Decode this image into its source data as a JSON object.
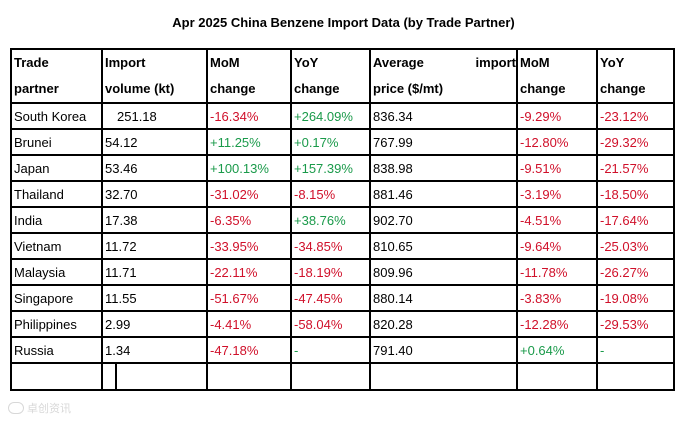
{
  "title": "Apr 2025 China Benzene Import Data (by Trade Partner)",
  "headers": {
    "partner": [
      "Trade",
      "partner"
    ],
    "volume": [
      "Import",
      "volume (kt)"
    ],
    "vol_mom": [
      "MoM",
      "change"
    ],
    "vol_yoy": [
      "YoY",
      "change"
    ],
    "price": [
      "Average",
      "import",
      "price ($/mt)"
    ],
    "price_mom": [
      "MoM",
      "change"
    ],
    "price_yoy": [
      "YoY",
      "change"
    ]
  },
  "rows": [
    {
      "partner": "South Korea",
      "volume": "251.18",
      "vol_mom": "-16.34%",
      "vol_yoy": "+264.09%",
      "price": "836.34",
      "price_mom": "-9.29%",
      "price_yoy": "-23.12%"
    },
    {
      "partner": "Brunei",
      "volume": "54.12",
      "vol_mom": "+11.25%",
      "vol_yoy": "+0.17%",
      "price": "767.99",
      "price_mom": "-12.80%",
      "price_yoy": "-29.32%"
    },
    {
      "partner": "Japan",
      "volume": "53.46",
      "vol_mom": "+100.13%",
      "vol_yoy": "+157.39%",
      "price": "838.98",
      "price_mom": "-9.51%",
      "price_yoy": "-21.57%"
    },
    {
      "partner": "Thailand",
      "volume": "32.70",
      "vol_mom": "-31.02%",
      "vol_yoy": "-8.15%",
      "price": "881.46",
      "price_mom": "-3.19%",
      "price_yoy": "-18.50%"
    },
    {
      "partner": "India",
      "volume": "17.38",
      "vol_mom": "-6.35%",
      "vol_yoy": "+38.76%",
      "price": "902.70",
      "price_mom": "-4.51%",
      "price_yoy": "-17.64%"
    },
    {
      "partner": "Vietnam",
      "volume": "11.72",
      "vol_mom": "-33.95%",
      "vol_yoy": "-34.85%",
      "price": "810.65",
      "price_mom": "-9.64%",
      "price_yoy": "-25.03%"
    },
    {
      "partner": "Malaysia",
      "volume": "11.71",
      "vol_mom": "-22.11%",
      "vol_yoy": "-18.19%",
      "price": "809.96",
      "price_mom": "-11.78%",
      "price_yoy": "-26.27%"
    },
    {
      "partner": "Singapore",
      "volume": "11.55",
      "vol_mom": "-51.67%",
      "vol_yoy": "-47.45%",
      "price": "880.14",
      "price_mom": "-3.83%",
      "price_yoy": "-19.08%"
    },
    {
      "partner": "Philippines",
      "volume": "2.99",
      "vol_mom": "-4.41%",
      "vol_yoy": "-58.04%",
      "price": "820.28",
      "price_mom": "-12.28%",
      "price_yoy": "-29.53%"
    },
    {
      "partner": "Russia",
      "volume": "1.34",
      "vol_mom": "-47.18%",
      "vol_yoy": "-",
      "price": "791.40",
      "price_mom": "+0.64%",
      "price_yoy": "-"
    }
  ],
  "colors": {
    "negative": "#d0102a",
    "positive": "#1a9a4a"
  },
  "watermark": {
    "icon": "watermark-logo-icon",
    "text": "卓创资讯"
  }
}
